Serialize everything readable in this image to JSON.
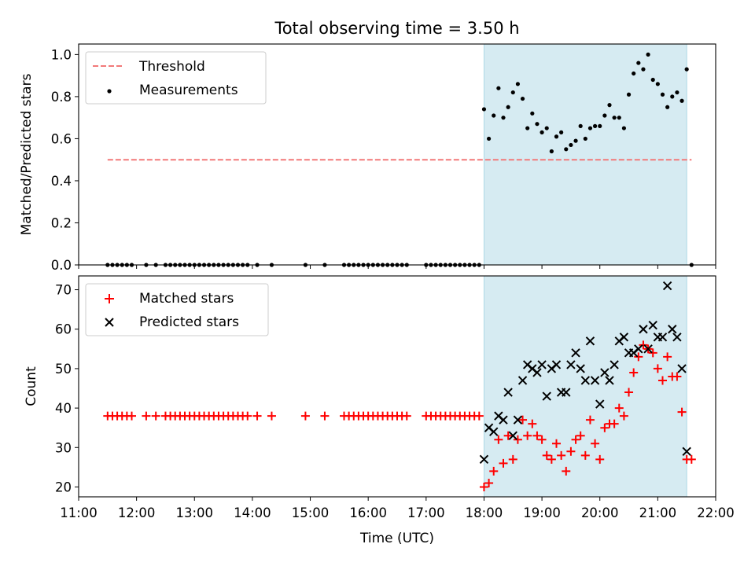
{
  "title": "Total observing time = 3.50 h",
  "chart_data": [
    {
      "type": "scatter",
      "ylabel": "Matched/Predicted stars",
      "xlim": [
        "11:00",
        "22:00"
      ],
      "ylim": [
        0.0,
        1.05
      ],
      "yticks": [
        "0.0",
        "0.2",
        "0.4",
        "0.6",
        "0.8",
        "1.0"
      ],
      "yticks_values": [
        0.0,
        0.2,
        0.4,
        0.6,
        0.8,
        1.0
      ],
      "legend_position": "upper-left",
      "shaded_interval": [
        "18:00",
        "21:30"
      ],
      "threshold": {
        "name": "Threshold",
        "value": 0.5,
        "x_range": [
          "11:30",
          "21:35"
        ],
        "color": "#f27979"
      },
      "series": [
        {
          "name": "Measurements",
          "color": "#000000",
          "points": [
            [
              "11:30",
              0
            ],
            [
              "11:35",
              0
            ],
            [
              "11:40",
              0
            ],
            [
              "11:45",
              0
            ],
            [
              "11:50",
              0
            ],
            [
              "11:55",
              0
            ],
            [
              "12:10",
              0
            ],
            [
              "12:20",
              0
            ],
            [
              "12:30",
              0
            ],
            [
              "12:35",
              0
            ],
            [
              "12:40",
              0
            ],
            [
              "12:45",
              0
            ],
            [
              "12:50",
              0
            ],
            [
              "12:55",
              0
            ],
            [
              "13:00",
              0
            ],
            [
              "13:05",
              0
            ],
            [
              "13:10",
              0
            ],
            [
              "13:15",
              0
            ],
            [
              "13:20",
              0
            ],
            [
              "13:25",
              0
            ],
            [
              "13:30",
              0
            ],
            [
              "13:35",
              0
            ],
            [
              "13:40",
              0
            ],
            [
              "13:45",
              0
            ],
            [
              "13:50",
              0
            ],
            [
              "13:55",
              0
            ],
            [
              "14:05",
              0
            ],
            [
              "14:20",
              0
            ],
            [
              "14:55",
              0
            ],
            [
              "15:15",
              0
            ],
            [
              "15:35",
              0
            ],
            [
              "15:40",
              0
            ],
            [
              "15:45",
              0
            ],
            [
              "15:50",
              0
            ],
            [
              "15:55",
              0
            ],
            [
              "16:00",
              0
            ],
            [
              "16:05",
              0
            ],
            [
              "16:10",
              0
            ],
            [
              "16:15",
              0
            ],
            [
              "16:20",
              0
            ],
            [
              "16:25",
              0
            ],
            [
              "16:30",
              0
            ],
            [
              "16:35",
              0
            ],
            [
              "16:40",
              0
            ],
            [
              "17:00",
              0
            ],
            [
              "17:05",
              0
            ],
            [
              "17:10",
              0
            ],
            [
              "17:15",
              0
            ],
            [
              "17:20",
              0
            ],
            [
              "17:25",
              0
            ],
            [
              "17:30",
              0
            ],
            [
              "17:35",
              0
            ],
            [
              "17:40",
              0
            ],
            [
              "17:45",
              0
            ],
            [
              "17:50",
              0
            ],
            [
              "17:55",
              0
            ],
            [
              "18:00",
              0.74
            ],
            [
              "18:05",
              0.6
            ],
            [
              "18:10",
              0.71
            ],
            [
              "18:15",
              0.84
            ],
            [
              "18:20",
              0.7
            ],
            [
              "18:25",
              0.75
            ],
            [
              "18:30",
              0.82
            ],
            [
              "18:35",
              0.86
            ],
            [
              "18:40",
              0.79
            ],
            [
              "18:45",
              0.65
            ],
            [
              "18:50",
              0.72
            ],
            [
              "18:55",
              0.67
            ],
            [
              "19:00",
              0.63
            ],
            [
              "19:05",
              0.65
            ],
            [
              "19:10",
              0.54
            ],
            [
              "19:15",
              0.61
            ],
            [
              "19:20",
              0.63
            ],
            [
              "19:25",
              0.55
            ],
            [
              "19:30",
              0.57
            ],
            [
              "19:35",
              0.59
            ],
            [
              "19:40",
              0.66
            ],
            [
              "19:45",
              0.6
            ],
            [
              "19:50",
              0.65
            ],
            [
              "19:55",
              0.66
            ],
            [
              "20:00",
              0.66
            ],
            [
              "20:05",
              0.71
            ],
            [
              "20:10",
              0.76
            ],
            [
              "20:15",
              0.7
            ],
            [
              "20:20",
              0.7
            ],
            [
              "20:25",
              0.65
            ],
            [
              "20:30",
              0.81
            ],
            [
              "20:35",
              0.91
            ],
            [
              "20:40",
              0.96
            ],
            [
              "20:45",
              0.93
            ],
            [
              "20:50",
              1.0
            ],
            [
              "20:55",
              0.88
            ],
            [
              "21:00",
              0.86
            ],
            [
              "21:05",
              0.81
            ],
            [
              "21:10",
              0.75
            ],
            [
              "21:15",
              0.8
            ],
            [
              "21:20",
              0.82
            ],
            [
              "21:25",
              0.78
            ],
            [
              "21:30",
              0.93
            ],
            [
              "21:35",
              0
            ]
          ]
        }
      ]
    },
    {
      "type": "scatter",
      "xlabel": "Time (UTC)",
      "ylabel": "Count",
      "xlim": [
        "11:00",
        "22:00"
      ],
      "ylim": [
        17.5,
        73.5
      ],
      "xticks": [
        "11:00",
        "12:00",
        "13:00",
        "14:00",
        "15:00",
        "16:00",
        "17:00",
        "18:00",
        "19:00",
        "20:00",
        "21:00",
        "22:00"
      ],
      "yticks": [
        "20",
        "30",
        "40",
        "50",
        "60",
        "70"
      ],
      "yticks_values": [
        20,
        30,
        40,
        50,
        60,
        70
      ],
      "legend_position": "upper-left",
      "shaded_interval": [
        "18:00",
        "21:30"
      ],
      "series": [
        {
          "name": "Matched stars",
          "marker": "plus",
          "color": "#ff0000",
          "points": [
            [
              "11:30",
              38
            ],
            [
              "11:35",
              38
            ],
            [
              "11:40",
              38
            ],
            [
              "11:45",
              38
            ],
            [
              "11:50",
              38
            ],
            [
              "11:55",
              38
            ],
            [
              "12:10",
              38
            ],
            [
              "12:20",
              38
            ],
            [
              "12:30",
              38
            ],
            [
              "12:35",
              38
            ],
            [
              "12:40",
              38
            ],
            [
              "12:45",
              38
            ],
            [
              "12:50",
              38
            ],
            [
              "12:55",
              38
            ],
            [
              "13:00",
              38
            ],
            [
              "13:05",
              38
            ],
            [
              "13:10",
              38
            ],
            [
              "13:15",
              38
            ],
            [
              "13:20",
              38
            ],
            [
              "13:25",
              38
            ],
            [
              "13:30",
              38
            ],
            [
              "13:35",
              38
            ],
            [
              "13:40",
              38
            ],
            [
              "13:45",
              38
            ],
            [
              "13:50",
              38
            ],
            [
              "13:55",
              38
            ],
            [
              "14:05",
              38
            ],
            [
              "14:20",
              38
            ],
            [
              "14:55",
              38
            ],
            [
              "15:15",
              38
            ],
            [
              "15:35",
              38
            ],
            [
              "15:40",
              38
            ],
            [
              "15:45",
              38
            ],
            [
              "15:50",
              38
            ],
            [
              "15:55",
              38
            ],
            [
              "16:00",
              38
            ],
            [
              "16:05",
              38
            ],
            [
              "16:10",
              38
            ],
            [
              "16:15",
              38
            ],
            [
              "16:20",
              38
            ],
            [
              "16:25",
              38
            ],
            [
              "16:30",
              38
            ],
            [
              "16:35",
              38
            ],
            [
              "16:40",
              38
            ],
            [
              "17:00",
              38
            ],
            [
              "17:05",
              38
            ],
            [
              "17:10",
              38
            ],
            [
              "17:15",
              38
            ],
            [
              "17:20",
              38
            ],
            [
              "17:25",
              38
            ],
            [
              "17:30",
              38
            ],
            [
              "17:35",
              38
            ],
            [
              "17:40",
              38
            ],
            [
              "17:45",
              38
            ],
            [
              "17:50",
              38
            ],
            [
              "17:55",
              38
            ],
            [
              "18:00",
              20
            ],
            [
              "18:05",
              21
            ],
            [
              "18:10",
              24
            ],
            [
              "18:15",
              32
            ],
            [
              "18:20",
              26
            ],
            [
              "18:25",
              33
            ],
            [
              "18:30",
              27
            ],
            [
              "18:35",
              32
            ],
            [
              "18:40",
              37
            ],
            [
              "18:45",
              33
            ],
            [
              "18:50",
              36
            ],
            [
              "18:55",
              33
            ],
            [
              "19:00",
              32
            ],
            [
              "19:05",
              28
            ],
            [
              "19:10",
              27
            ],
            [
              "19:15",
              31
            ],
            [
              "19:20",
              28
            ],
            [
              "19:25",
              24
            ],
            [
              "19:30",
              29
            ],
            [
              "19:35",
              32
            ],
            [
              "19:40",
              33
            ],
            [
              "19:45",
              28
            ],
            [
              "19:50",
              37
            ],
            [
              "19:55",
              31
            ],
            [
              "20:00",
              27
            ],
            [
              "20:05",
              35
            ],
            [
              "20:10",
              36
            ],
            [
              "20:15",
              36
            ],
            [
              "20:20",
              40
            ],
            [
              "20:25",
              38
            ],
            [
              "20:30",
              44
            ],
            [
              "20:35",
              49
            ],
            [
              "20:40",
              53
            ],
            [
              "20:45",
              56
            ],
            [
              "20:50",
              55
            ],
            [
              "20:55",
              54
            ],
            [
              "21:00",
              50
            ],
            [
              "21:05",
              47
            ],
            [
              "21:10",
              53
            ],
            [
              "21:15",
              48
            ],
            [
              "21:20",
              48
            ],
            [
              "21:25",
              39
            ],
            [
              "21:30",
              27
            ],
            [
              "21:35",
              27
            ]
          ]
        },
        {
          "name": "Predicted stars",
          "marker": "x",
          "color": "#000000",
          "points": [
            [
              "18:00",
              27
            ],
            [
              "18:05",
              35
            ],
            [
              "18:10",
              34
            ],
            [
              "18:15",
              38
            ],
            [
              "18:20",
              37
            ],
            [
              "18:25",
              44
            ],
            [
              "18:30",
              33
            ],
            [
              "18:35",
              37
            ],
            [
              "18:40",
              47
            ],
            [
              "18:45",
              51
            ],
            [
              "18:50",
              50
            ],
            [
              "18:55",
              49
            ],
            [
              "19:00",
              51
            ],
            [
              "19:05",
              43
            ],
            [
              "19:10",
              50
            ],
            [
              "19:15",
              51
            ],
            [
              "19:20",
              44
            ],
            [
              "19:25",
              44
            ],
            [
              "19:30",
              51
            ],
            [
              "19:35",
              54
            ],
            [
              "19:40",
              50
            ],
            [
              "19:45",
              47
            ],
            [
              "19:50",
              57
            ],
            [
              "19:55",
              47
            ],
            [
              "20:00",
              41
            ],
            [
              "20:05",
              49
            ],
            [
              "20:10",
              47
            ],
            [
              "20:15",
              51
            ],
            [
              "20:20",
              57
            ],
            [
              "20:25",
              58
            ],
            [
              "20:30",
              54
            ],
            [
              "20:35",
              54
            ],
            [
              "20:40",
              55
            ],
            [
              "20:45",
              60
            ],
            [
              "20:50",
              55
            ],
            [
              "20:55",
              61
            ],
            [
              "21:00",
              58
            ],
            [
              "21:05",
              58
            ],
            [
              "21:10",
              71
            ],
            [
              "21:15",
              60
            ],
            [
              "21:20",
              58
            ],
            [
              "21:25",
              50
            ],
            [
              "21:30",
              29
            ]
          ]
        }
      ]
    }
  ]
}
